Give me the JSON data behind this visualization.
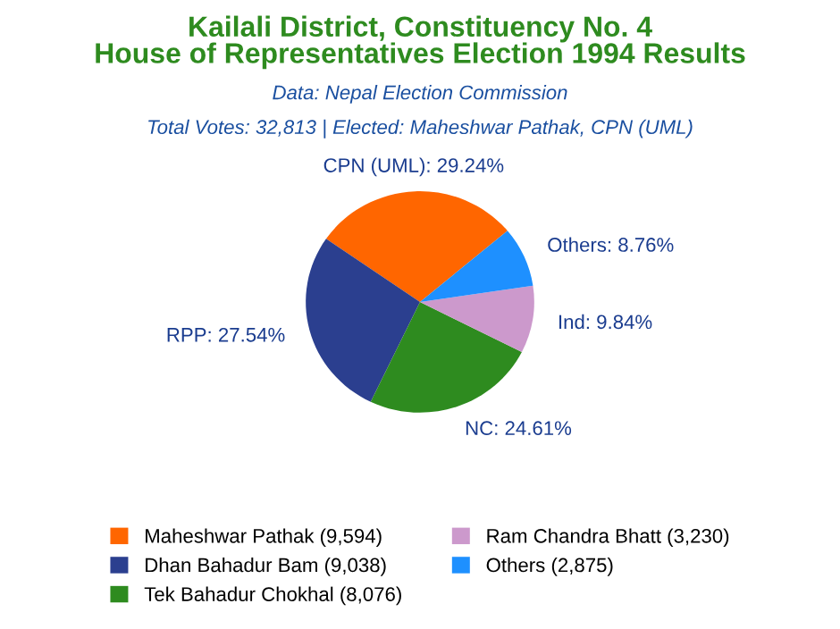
{
  "chart_data": {
    "type": "pie",
    "title": "Kailali District, Constituency No. 4\nHouse of Representatives Election 1994 Results",
    "subtitle": "Data: Nepal Election Commission",
    "annotations": [
      "Total Votes: 32,813 | Elected: Maheshwar Pathak, CPN (UML)"
    ],
    "categories": [
      "Maheshwar Pathak (9,594)",
      "Dhan Bahadur Bam (9,038)",
      "Tek Bahadur Chokhal (8,076)",
      "Ram Chandra Bhatt (3,230)",
      "Others (2,875)"
    ],
    "values": [
      29.24,
      27.54,
      24.61,
      9.84,
      8.76
    ],
    "value_labels": [
      "CPN (UML): 29.24%",
      "RPP: 27.54%",
      "NC: 24.61%",
      "Ind: 9.84%",
      "Others: 8.76%"
    ],
    "colors": [
      "#ff6600",
      "#2b3f8f",
      "#2e8b1f",
      "#cc99cc",
      "#1e90ff"
    ],
    "legend": "bottom"
  }
}
